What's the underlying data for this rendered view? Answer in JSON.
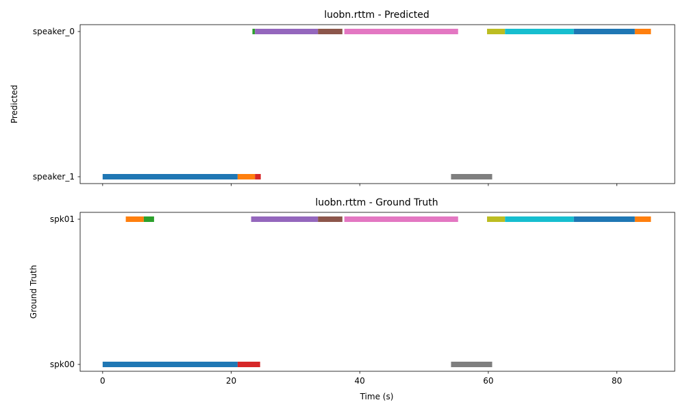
{
  "chart_data": [
    {
      "type": "timeline",
      "title": "luobn.rttm - Predicted",
      "ylabel": "Predicted",
      "xlabel": "",
      "xlim": [
        -3.5,
        89.0
      ],
      "categories": [
        "speaker_1",
        "speaker_0"
      ],
      "xticks": [
        0,
        20,
        40,
        60,
        80
      ],
      "show_xtick_labels": false,
      "segments": [
        {
          "speaker": "speaker_1",
          "start": 0.0,
          "end": 21.0,
          "color": "#1f77b4"
        },
        {
          "speaker": "speaker_1",
          "start": 21.0,
          "end": 23.7,
          "color": "#ff7f0e"
        },
        {
          "speaker": "speaker_1",
          "start": 23.7,
          "end": 24.6,
          "color": "#d62728"
        },
        {
          "speaker": "speaker_0",
          "start": 23.3,
          "end": 23.7,
          "color": "#2ca02c"
        },
        {
          "speaker": "speaker_0",
          "start": 23.7,
          "end": 33.5,
          "color": "#9467bd"
        },
        {
          "speaker": "speaker_0",
          "start": 33.5,
          "end": 37.3,
          "color": "#8c564b"
        },
        {
          "speaker": "speaker_0",
          "start": 37.6,
          "end": 55.3,
          "color": "#e377c2"
        },
        {
          "speaker": "speaker_1",
          "start": 54.2,
          "end": 60.6,
          "color": "#7f7f7f"
        },
        {
          "speaker": "speaker_0",
          "start": 59.8,
          "end": 62.6,
          "color": "#bcbd22"
        },
        {
          "speaker": "speaker_0",
          "start": 62.6,
          "end": 73.3,
          "color": "#17becf"
        },
        {
          "speaker": "speaker_0",
          "start": 73.3,
          "end": 82.8,
          "color": "#1f77b4"
        },
        {
          "speaker": "speaker_0",
          "start": 82.8,
          "end": 85.3,
          "color": "#ff7f0e"
        }
      ]
    },
    {
      "type": "timeline",
      "title": "luobn.rttm - Ground Truth",
      "ylabel": "Ground Truth",
      "xlabel": "Time (s)",
      "xlim": [
        -3.5,
        89.0
      ],
      "categories": [
        "spk00",
        "spk01"
      ],
      "xticks": [
        0,
        20,
        40,
        60,
        80
      ],
      "show_xtick_labels": true,
      "segments": [
        {
          "speaker": "spk00",
          "start": 0.0,
          "end": 21.0,
          "color": "#1f77b4"
        },
        {
          "speaker": "spk01",
          "start": 3.6,
          "end": 6.4,
          "color": "#ff7f0e"
        },
        {
          "speaker": "spk01",
          "start": 6.4,
          "end": 8.0,
          "color": "#2ca02c"
        },
        {
          "speaker": "spk00",
          "start": 21.0,
          "end": 24.5,
          "color": "#d62728"
        },
        {
          "speaker": "spk01",
          "start": 23.1,
          "end": 33.5,
          "color": "#9467bd"
        },
        {
          "speaker": "spk01",
          "start": 33.5,
          "end": 37.3,
          "color": "#8c564b"
        },
        {
          "speaker": "spk01",
          "start": 37.6,
          "end": 55.3,
          "color": "#e377c2"
        },
        {
          "speaker": "spk00",
          "start": 54.2,
          "end": 60.6,
          "color": "#7f7f7f"
        },
        {
          "speaker": "spk01",
          "start": 59.8,
          "end": 62.6,
          "color": "#bcbd22"
        },
        {
          "speaker": "spk01",
          "start": 62.6,
          "end": 73.3,
          "color": "#17becf"
        },
        {
          "speaker": "spk01",
          "start": 73.3,
          "end": 82.8,
          "color": "#1f77b4"
        },
        {
          "speaker": "spk01",
          "start": 82.8,
          "end": 85.3,
          "color": "#ff7f0e"
        }
      ]
    }
  ]
}
